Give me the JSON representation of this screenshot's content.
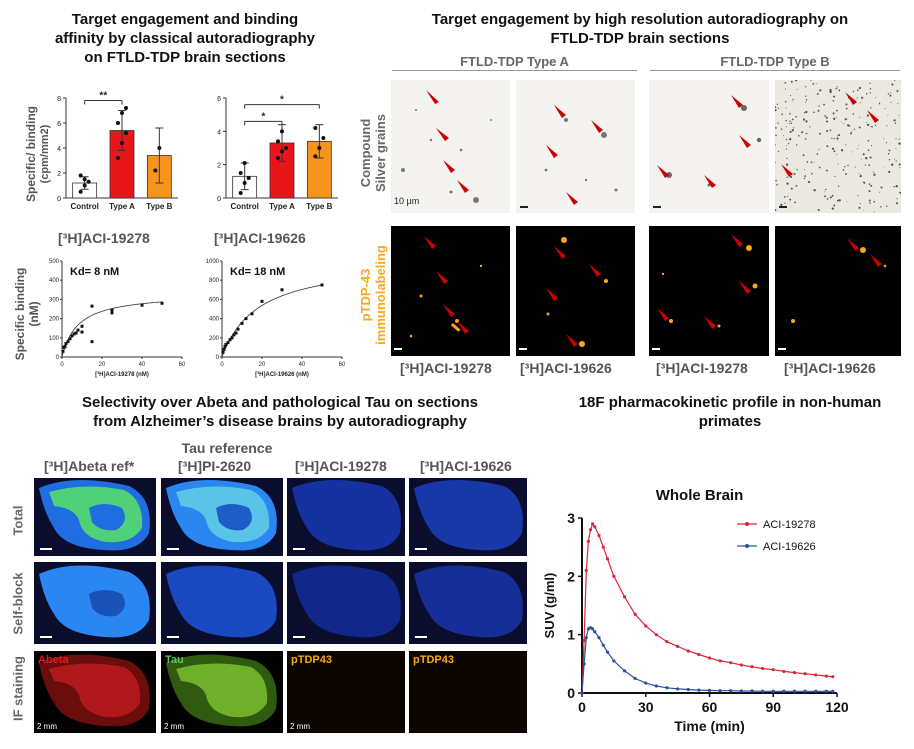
{
  "panel1": {
    "title": [
      "Target engagement and binding",
      "affinity by classical autoradiography",
      "on FTLD-TDP brain sections"
    ],
    "bar_ylabel": [
      "Specific/ binding",
      "(cpm/mm2)"
    ],
    "sat_ylabel": [
      "Specific binding",
      "(nM)"
    ],
    "compound1": "[³H]ACI-19278",
    "compound2": "[³H]ACI-19626",
    "kd1": "Kd= 8 nM",
    "kd2": "Kd= 18 nM",
    "sig1": "**",
    "sig2a": "*",
    "sig2b": "*"
  },
  "panel2": {
    "title": [
      "Target engagement by high resolution autoradiography on",
      "FTLD-TDP brain sections"
    ],
    "typeA": "FTLD-TDP Type A",
    "typeB": "FTLD-TDP Type B",
    "row1_label": [
      "Compound",
      "Silver grains"
    ],
    "row2_label": [
      "pTDP-43",
      "immunolabeling"
    ],
    "scale": "10 µm",
    "compounds": [
      "[³H]ACI-19278",
      "[³H]ACI-19626",
      "[³H]ACI-19278",
      "[³H]ACI-19626"
    ]
  },
  "panel3": {
    "title": [
      "Selectivity over Abeta and pathological Tau on sections",
      "from Alzheimer’s disease brains by autoradiography"
    ],
    "tau_reference": "Tau reference",
    "columns": [
      "[³H]Abeta ref*",
      "[³H]PI-2620",
      "[³H]ACI-19278",
      "[³H]ACI-19626"
    ],
    "rows": [
      "Total",
      "Self-block",
      "IF staining"
    ],
    "stains": [
      "Abeta",
      "Tau",
      "pTDP43",
      "pTDP43"
    ],
    "scale": "2 mm"
  },
  "panel4": {
    "title": [
      "18F pharmacokinetic profile in non-human",
      "primates"
    ]
  },
  "chart_data": [
    {
      "type": "bar",
      "id": "bar1",
      "categories": [
        "Control",
        "Type A",
        "Type B"
      ],
      "values": [
        1.2,
        5.4,
        3.4
      ],
      "errors": [
        0.5,
        1.6,
        2.2
      ],
      "points": [
        [
          0.5,
          1.0,
          1.3,
          1.8,
          1.5
        ],
        [
          3.2,
          4.4,
          5.2,
          6.0,
          6.8,
          7.2
        ],
        [
          2.2,
          4.0
        ]
      ],
      "colors": [
        "#ffffff",
        "#e8151b",
        "#f7941d"
      ],
      "ylim": [
        0,
        8
      ],
      "yticks": [
        0,
        2,
        4,
        6,
        8
      ]
    },
    {
      "type": "bar",
      "id": "bar2",
      "categories": [
        "Control",
        "Type A",
        "Type B"
      ],
      "values": [
        1.3,
        3.3,
        3.4
      ],
      "errors": [
        0.8,
        1.1,
        1.0
      ],
      "points": [
        [
          0.3,
          0.9,
          1.2,
          1.5,
          2.1
        ],
        [
          2.4,
          2.8,
          3.0,
          3.4,
          4.0
        ],
        [
          2.5,
          3.0,
          3.6,
          4.2
        ]
      ],
      "colors": [
        "#ffffff",
        "#e8151b",
        "#f7941d"
      ],
      "ylim": [
        0,
        6
      ],
      "yticks": [
        0,
        2,
        4,
        6
      ]
    },
    {
      "type": "scatter",
      "id": "sat1",
      "x": [
        0.5,
        1,
        1.5,
        2,
        3,
        4,
        5,
        6,
        7,
        8,
        10,
        10,
        15,
        15,
        25,
        25,
        40,
        50
      ],
      "y": [
        30,
        50,
        55,
        70,
        80,
        95,
        110,
        120,
        125,
        140,
        130,
        160,
        80,
        265,
        230,
        245,
        270,
        280
      ],
      "bmax": 333,
      "kd": 8,
      "xlabel": "[³H]ACI-19278 (nM)",
      "xlim": [
        0,
        60
      ],
      "ylim": [
        0,
        500
      ],
      "xticks": [
        0,
        20,
        40,
        60
      ],
      "yticks": [
        0,
        100,
        200,
        300,
        400,
        500
      ]
    },
    {
      "type": "scatter",
      "id": "sat2",
      "x": [
        0.5,
        1,
        1.5,
        2,
        3,
        4,
        5,
        6,
        7,
        8,
        10,
        12,
        15,
        20,
        30,
        50
      ],
      "y": [
        50,
        80,
        110,
        130,
        150,
        180,
        200,
        230,
        250,
        290,
        350,
        400,
        450,
        580,
        700,
        750
      ],
      "bmax": 1020,
      "kd": 18,
      "xlabel": "[³H]ACI-19626 (nM)",
      "xlim": [
        0,
        60
      ],
      "ylim": [
        0,
        1000
      ],
      "xticks": [
        0,
        20,
        40,
        60
      ],
      "yticks": [
        0,
        200,
        400,
        600,
        800,
        1000
      ]
    },
    {
      "type": "line",
      "id": "pk",
      "title": "Whole  Brain",
      "xlabel": "Time (min)",
      "ylabel": "SUV (g/ml)",
      "xlim": [
        0,
        120
      ],
      "ylim": [
        0,
        3
      ],
      "xticks": [
        0,
        30,
        60,
        90,
        120
      ],
      "yticks": [
        0,
        1,
        2,
        3
      ],
      "series": [
        {
          "name": "ACI-19278",
          "color": "#d7263d",
          "x": [
            0,
            1,
            2,
            3,
            4,
            5,
            6,
            8,
            10,
            12,
            15,
            20,
            25,
            30,
            35,
            40,
            45,
            50,
            55,
            60,
            65,
            70,
            75,
            80,
            85,
            90,
            95,
            100,
            105,
            110,
            115,
            118
          ],
          "y": [
            0,
            0.9,
            2.1,
            2.6,
            2.8,
            2.9,
            2.85,
            2.7,
            2.5,
            2.3,
            2.0,
            1.65,
            1.35,
            1.15,
            1.0,
            0.88,
            0.8,
            0.72,
            0.66,
            0.6,
            0.55,
            0.52,
            0.48,
            0.45,
            0.42,
            0.4,
            0.37,
            0.35,
            0.33,
            0.31,
            0.29,
            0.28
          ]
        },
        {
          "name": "ACI-19626",
          "color": "#2b4fa0",
          "x": [
            0,
            1,
            2,
            3,
            4,
            5,
            6,
            8,
            10,
            12,
            15,
            20,
            25,
            30,
            35,
            40,
            45,
            50,
            55,
            60,
            65,
            70,
            75,
            80,
            85,
            90,
            95,
            100,
            105,
            110,
            115,
            118
          ],
          "y": [
            0,
            0.5,
            0.95,
            1.1,
            1.12,
            1.1,
            1.05,
            0.95,
            0.82,
            0.7,
            0.55,
            0.38,
            0.25,
            0.17,
            0.12,
            0.09,
            0.07,
            0.06,
            0.05,
            0.045,
            0.04,
            0.04,
            0.035,
            0.035,
            0.03,
            0.03,
            0.03,
            0.03,
            0.03,
            0.03,
            0.03,
            0.03
          ]
        }
      ]
    }
  ]
}
